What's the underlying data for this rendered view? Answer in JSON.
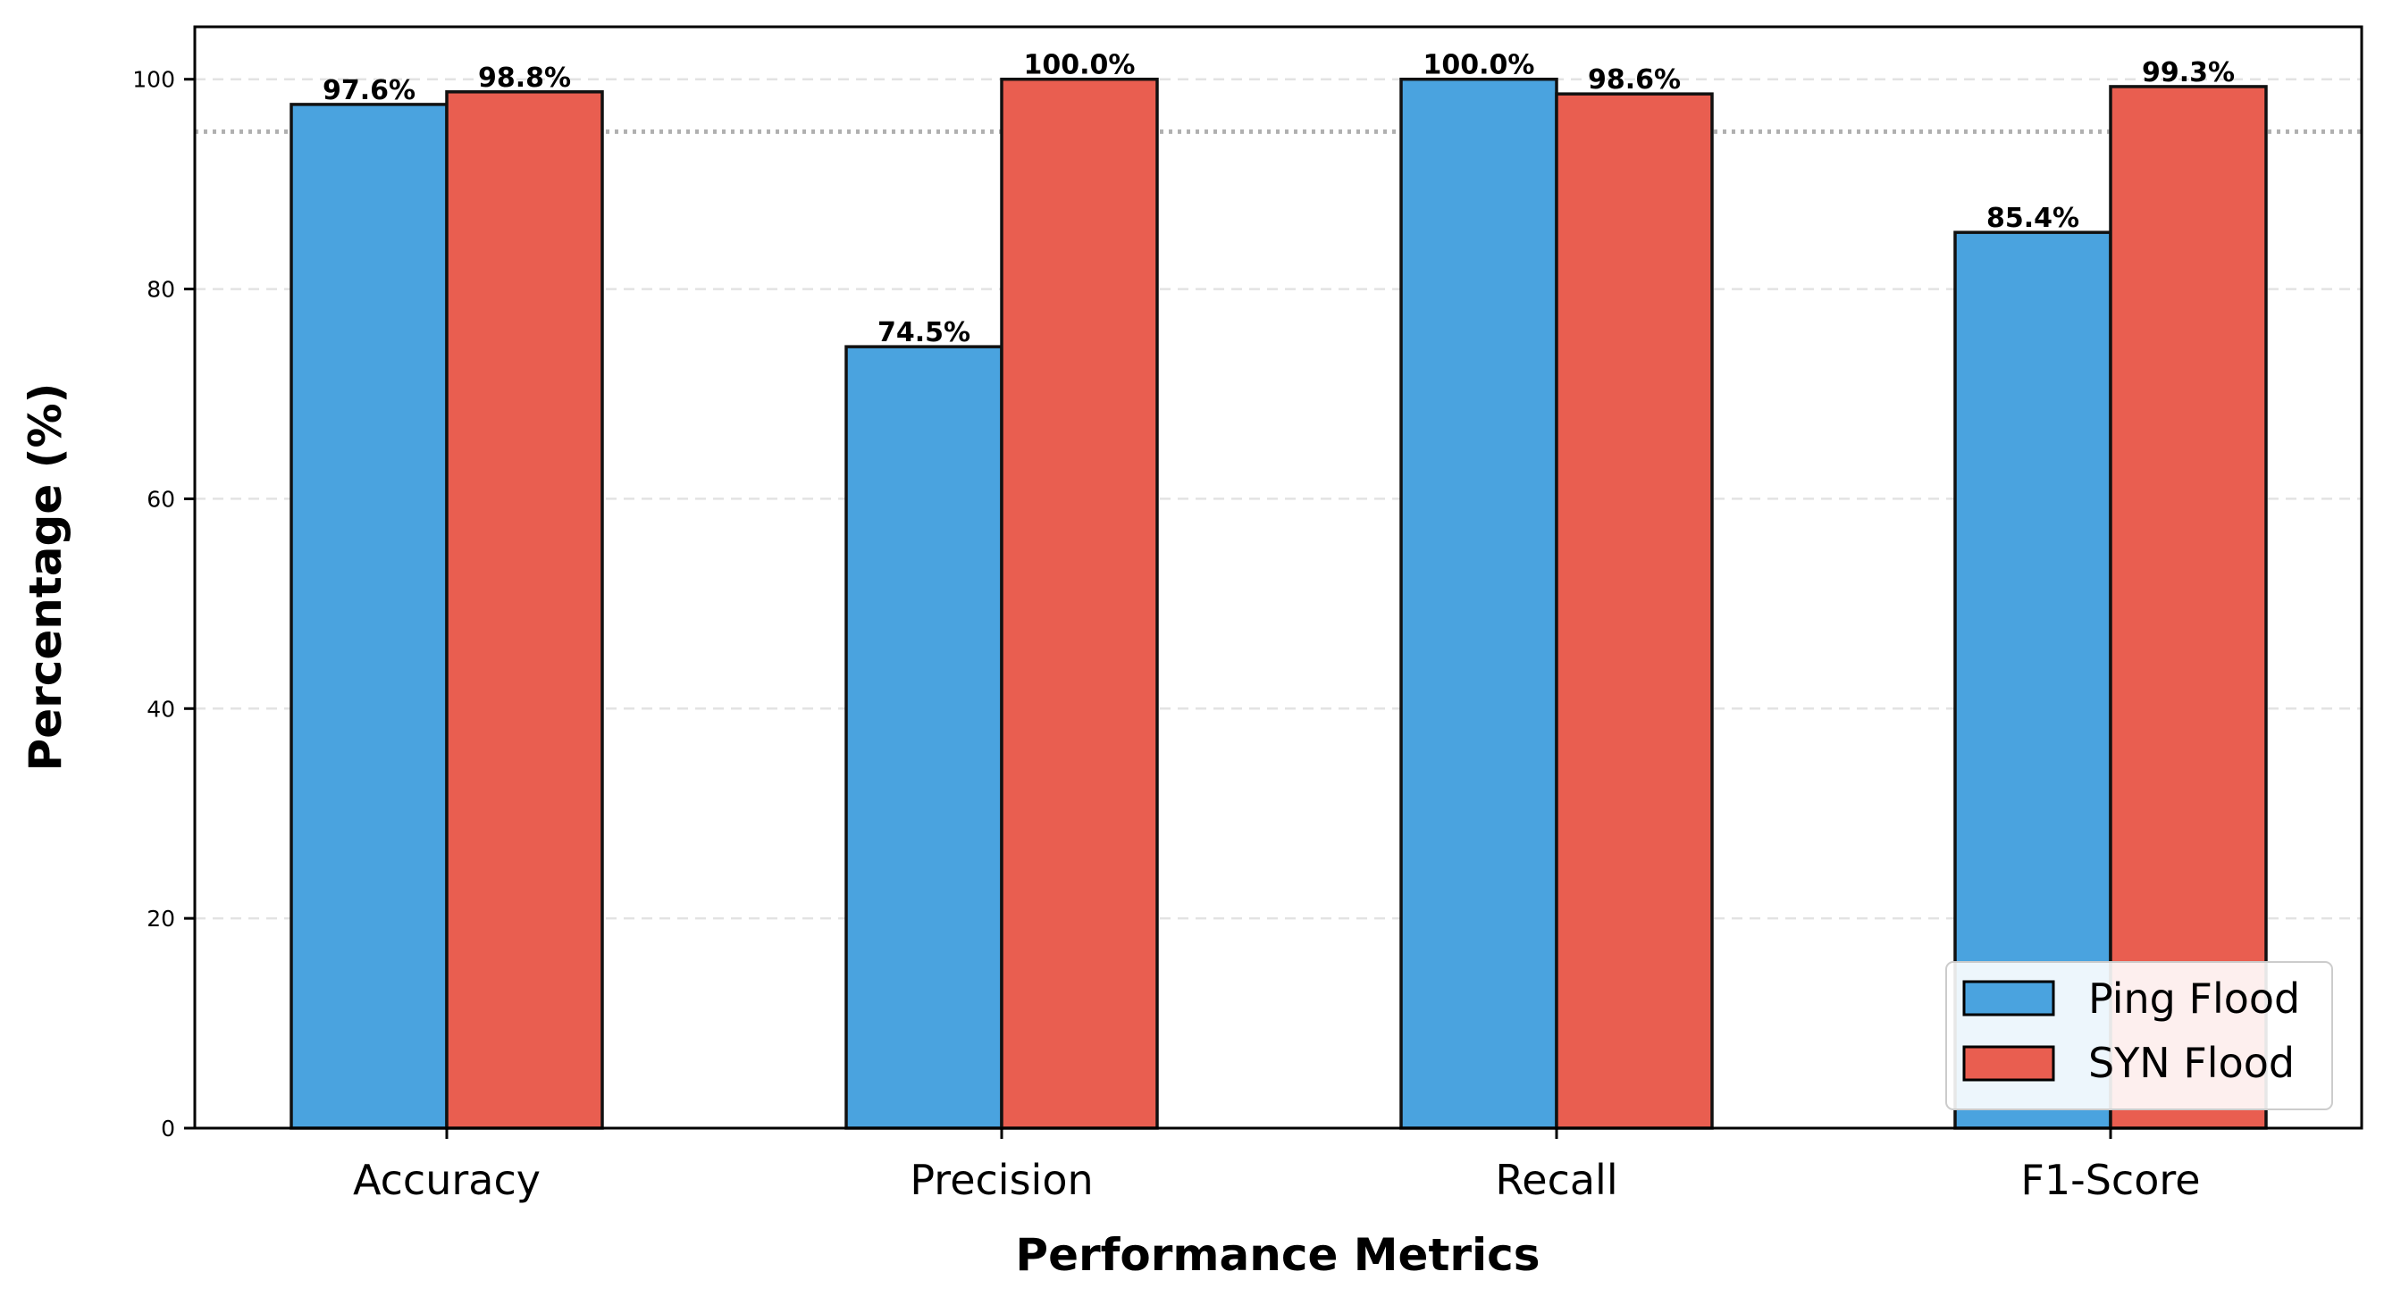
{
  "chart_data": {
    "type": "bar",
    "categories": [
      "Accuracy",
      "Precision",
      "Recall",
      "F1-Score"
    ],
    "series": [
      {
        "name": "Ping Flood",
        "values": [
          97.6,
          74.5,
          100.0,
          85.4
        ],
        "labels": [
          "97.6%",
          "74.5%",
          "100.0%",
          "85.4%"
        ],
        "color": "#4aa3df"
      },
      {
        "name": "SYN Flood",
        "values": [
          98.8,
          100.0,
          98.6,
          99.3
        ],
        "labels": [
          "98.8%",
          "100.0%",
          "98.6%",
          "99.3%"
        ],
        "color": "#e95e50"
      }
    ],
    "xlabel": "Performance Metrics",
    "ylabel": "Percentage (%)",
    "ylim": [
      0,
      105
    ],
    "yticks": [
      "0",
      "20",
      "40",
      "60",
      "80",
      "100"
    ],
    "reference_line": 95,
    "grid": true,
    "legend_position": "lower-right"
  }
}
